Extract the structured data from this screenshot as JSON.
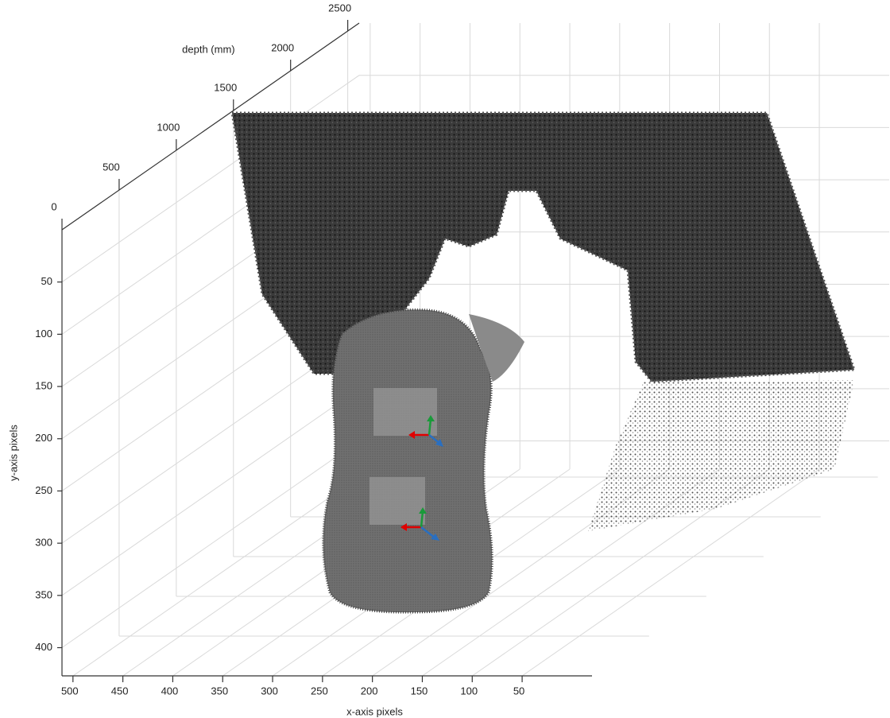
{
  "chart_data": {
    "type": "scatter3d",
    "xlabel": "x-axis pixels",
    "ylabel": "y-axis pixels",
    "zlabel": "depth (mm)",
    "xlim": [
      -20,
      511
    ],
    "ylim": [
      0,
      427
    ],
    "zlim": [
      0,
      2600
    ],
    "xticks": [
      500,
      450,
      400,
      350,
      300,
      250,
      200,
      150,
      100,
      50
    ],
    "yticks": [
      50,
      100,
      150,
      200,
      250,
      300,
      350,
      400
    ],
    "zticks": [
      0,
      500,
      1000,
      1500,
      2000,
      2500
    ],
    "grid": true,
    "color": "#333333"
  }
}
